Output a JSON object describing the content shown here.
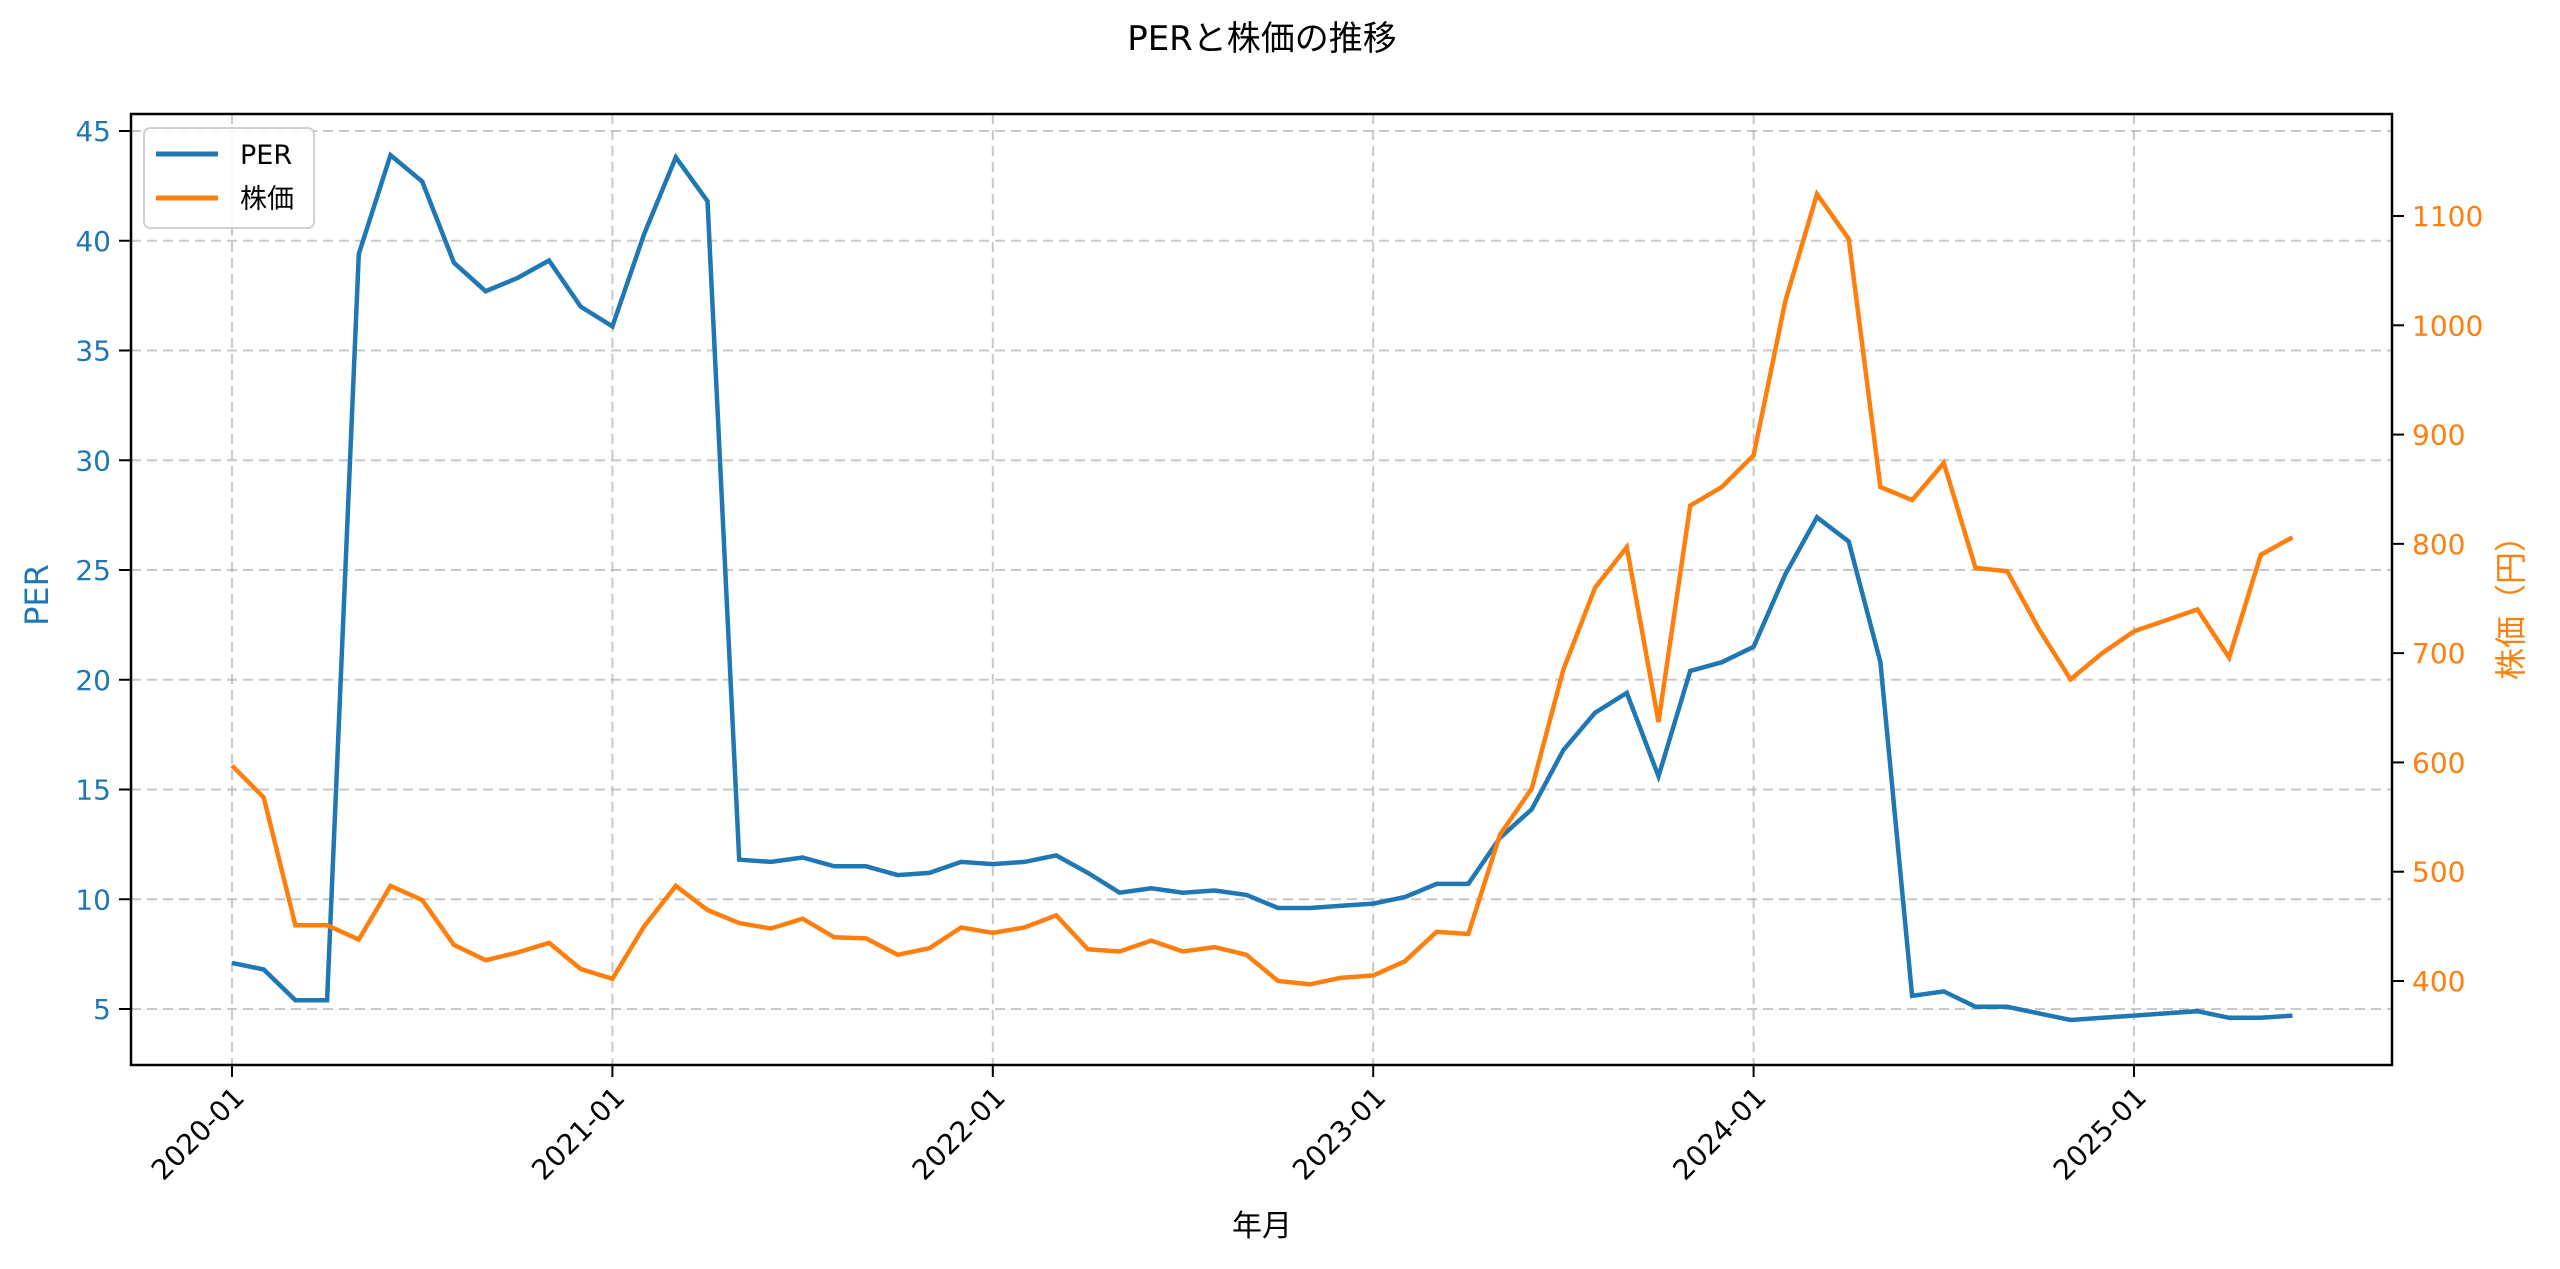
{
  "chart_data": {
    "type": "line",
    "title": "PERと株価の推移",
    "xlabel": "年月",
    "ylabel": "PER",
    "ylabel_right": "株価（円）",
    "x_tick_labels": [
      "2020-01",
      "2021-01",
      "2022-01",
      "2023-01",
      "2024-01",
      "2025-01"
    ],
    "y_ticks_left": [
      5,
      10,
      15,
      20,
      25,
      30,
      35,
      40,
      45
    ],
    "y_ticks_right": [
      400,
      500,
      600,
      700,
      800,
      900,
      1000,
      1100
    ],
    "ylim": [
      2.5,
      45.7
    ],
    "ylim_right": [
      330,
      1190
    ],
    "grid": true,
    "legend_position": "upper left",
    "x": [
      "2020-01",
      "2020-02",
      "2020-03",
      "2020-04",
      "2020-05",
      "2020-06",
      "2020-07",
      "2020-08",
      "2020-09",
      "2020-10",
      "2020-11",
      "2020-12",
      "2021-01",
      "2021-02",
      "2021-03",
      "2021-04",
      "2021-05",
      "2021-06",
      "2021-07",
      "2021-08",
      "2021-09",
      "2021-10",
      "2021-11",
      "2021-12",
      "2022-01",
      "2022-02",
      "2022-03",
      "2022-04",
      "2022-05",
      "2022-06",
      "2022-07",
      "2022-08",
      "2022-09",
      "2022-10",
      "2022-11",
      "2022-12",
      "2023-01",
      "2023-02",
      "2023-03",
      "2023-04",
      "2023-05",
      "2023-06",
      "2023-07",
      "2023-08",
      "2023-09",
      "2023-10",
      "2023-11",
      "2023-12",
      "2024-01",
      "2024-02",
      "2024-03",
      "2024-04",
      "2024-05",
      "2024-06",
      "2024-07",
      "2024-08",
      "2024-09",
      "2024-10",
      "2024-11",
      "2024-12",
      "2025-01",
      "2025-02",
      "2025-03",
      "2025-04",
      "2025-05",
      "2025-06"
    ],
    "series": [
      {
        "name": "PER",
        "axis": "left",
        "color": "#1f77b4",
        "values": [
          7.1,
          6.8,
          5.4,
          5.4,
          39.4,
          43.9,
          42.7,
          39.0,
          37.7,
          38.3,
          39.1,
          37.0,
          36.1,
          40.3,
          43.8,
          41.8,
          11.8,
          11.7,
          11.9,
          11.5,
          11.5,
          11.1,
          11.2,
          11.7,
          11.6,
          11.7,
          12.0,
          11.2,
          10.3,
          10.5,
          10.3,
          10.4,
          10.2,
          9.6,
          9.6,
          9.7,
          9.8,
          10.1,
          10.7,
          10.7,
          12.8,
          14.1,
          16.8,
          18.5,
          19.4,
          15.6,
          20.4,
          20.8,
          21.5,
          24.8,
          27.4,
          26.3,
          20.8,
          5.6,
          5.8,
          5.1,
          5.1,
          4.8,
          4.5,
          4.6,
          4.7,
          4.8,
          4.9,
          4.6,
          4.6,
          4.7
        ]
      },
      {
        "name": "株価",
        "axis": "right",
        "color": "#ff7f0e",
        "values": [
          597,
          568,
          451,
          451,
          438,
          487,
          474,
          433,
          419,
          426,
          435,
          411,
          402,
          450,
          487,
          465,
          453,
          448,
          457,
          440,
          439,
          424,
          430,
          449,
          444,
          449,
          460,
          429,
          427,
          437,
          427,
          431,
          424,
          400,
          397,
          403,
          405,
          418,
          445,
          443,
          534,
          576,
          685,
          760,
          797,
          637,
          835,
          852,
          881,
          1022,
          1120,
          1079,
          852,
          840,
          874,
          778,
          775,
          722,
          676,
          700,
          720,
          730,
          740,
          696,
          790,
          806
        ]
      }
    ]
  },
  "legend": {
    "items": [
      {
        "label": "PER",
        "color": "#1f77b4"
      },
      {
        "label": "株価",
        "color": "#ff7f0e"
      }
    ]
  }
}
